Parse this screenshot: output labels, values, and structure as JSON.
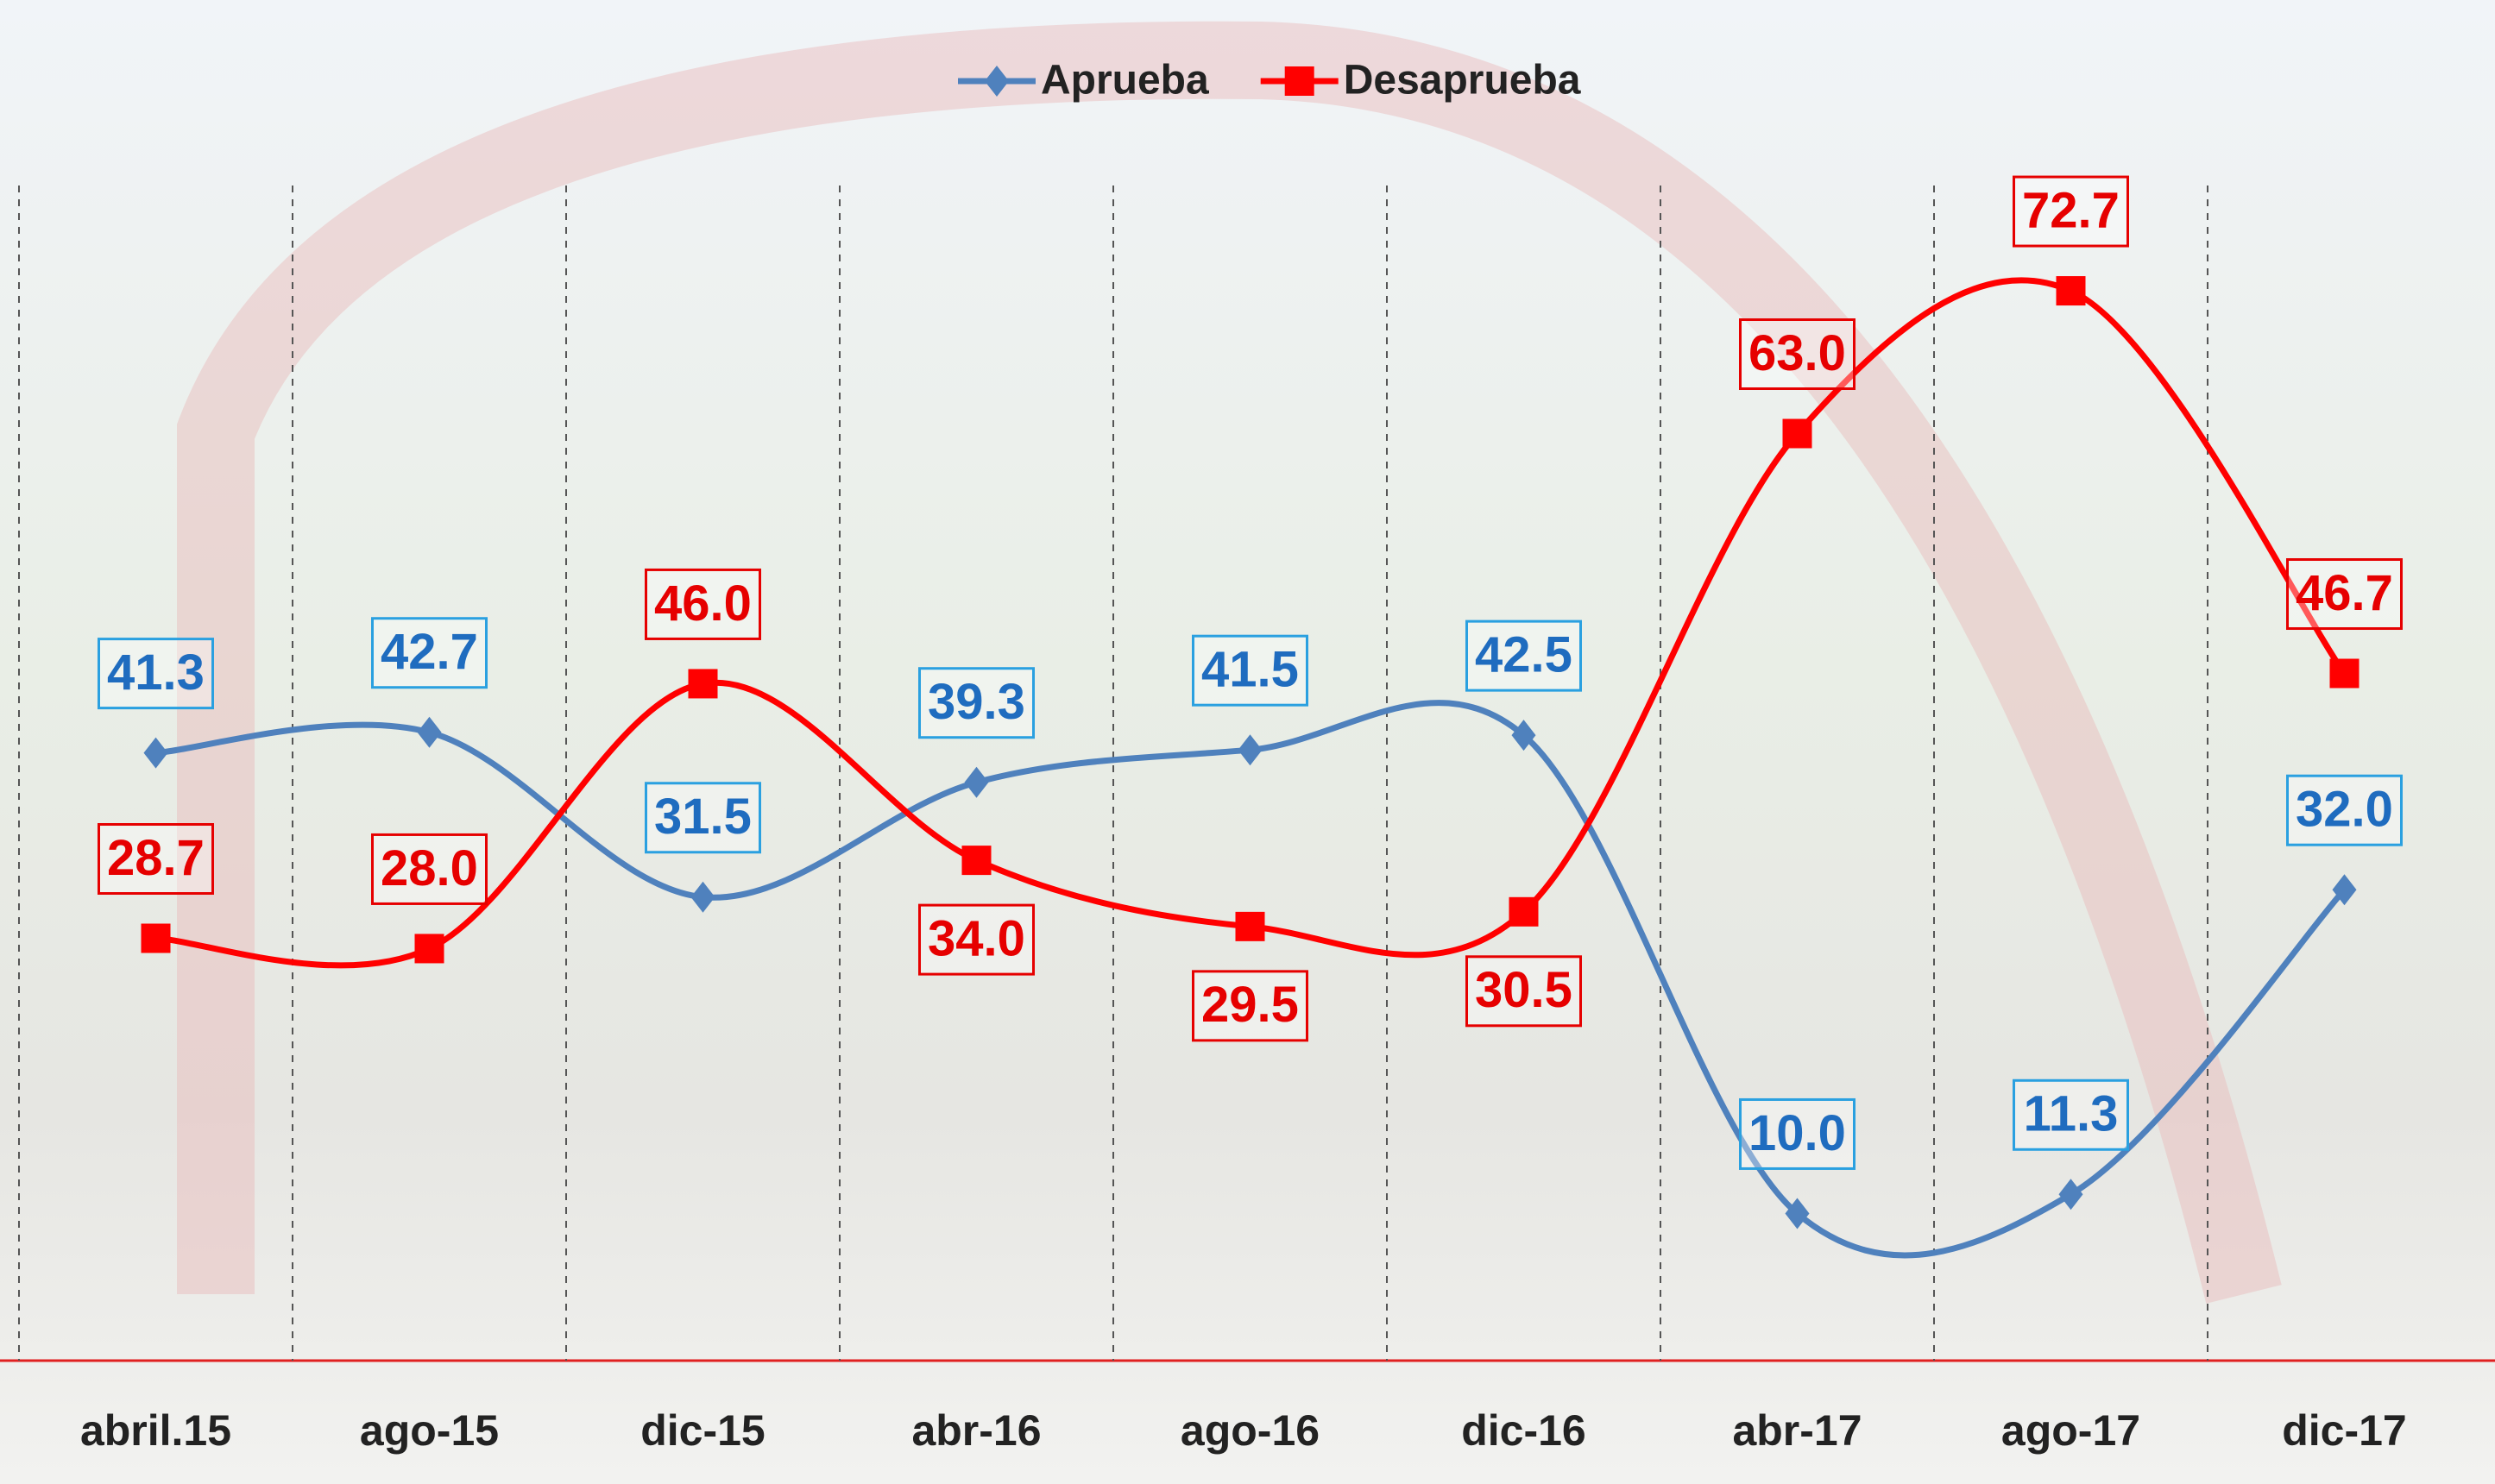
{
  "chart_data": {
    "type": "line",
    "categories": [
      "abril.15",
      "ago-15",
      "dic-15",
      "abr-16",
      "ago-16",
      "dic-16",
      "abr-17",
      "ago-17",
      "dic-17"
    ],
    "series": [
      {
        "name": "Aprueba",
        "color": "#4f81bd",
        "label_color": "#1f6cbf",
        "marker": "diamond",
        "values": [
          41.3,
          42.7,
          31.5,
          39.3,
          41.5,
          42.5,
          10.0,
          11.3,
          32.0
        ],
        "value_labels": [
          "41.3",
          "42.7",
          "31.5",
          "39.3",
          "41.5",
          "42.5",
          "10.0",
          "11.3",
          "32.0"
        ]
      },
      {
        "name": "Desaprueba",
        "color": "#ff0000",
        "label_color": "#e60000",
        "marker": "square",
        "values": [
          28.7,
          28.0,
          46.0,
          34.0,
          29.5,
          30.5,
          63.0,
          72.7,
          46.7
        ],
        "value_labels": [
          "28.7",
          "28.0",
          "46.0",
          "34.0",
          "29.5",
          "30.5",
          "63.0",
          "72.7",
          "46.7"
        ]
      }
    ],
    "ylim": [
      0,
      90
    ],
    "smooth": true,
    "legend": "top"
  }
}
